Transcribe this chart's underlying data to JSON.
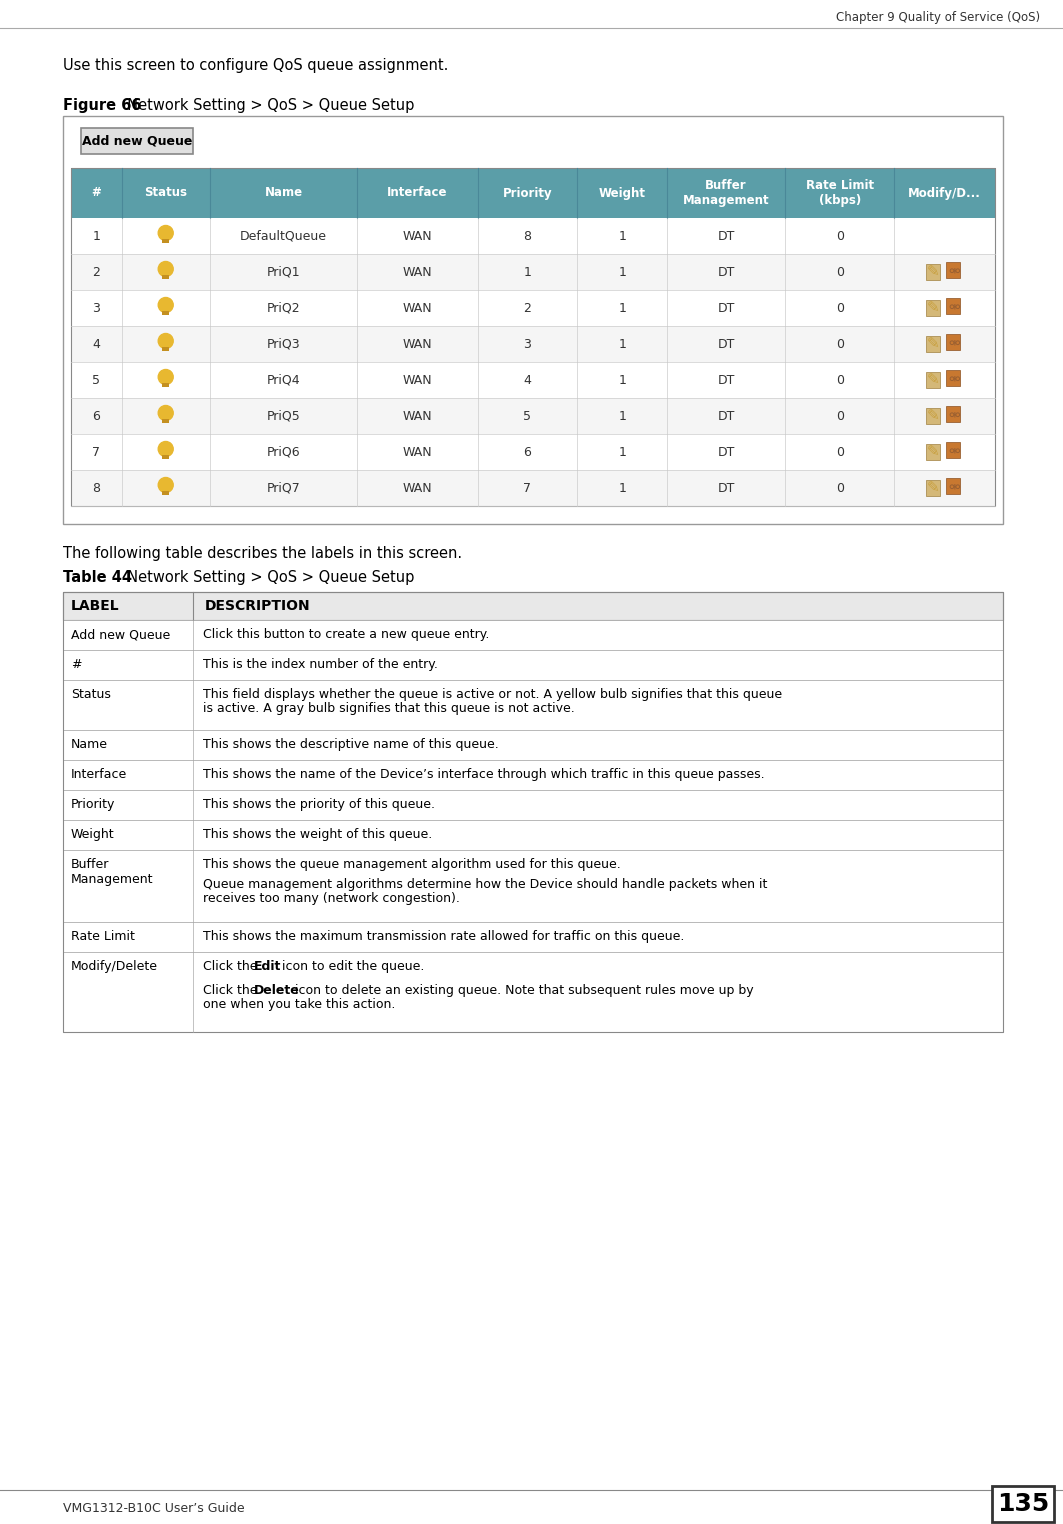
{
  "page_header": "Chapter 9 Quality of Service (QoS)",
  "page_footer_left": "VMG1312-B10C User’s Guide",
  "page_number": "135",
  "intro_text": "Use this screen to configure QoS queue assignment.",
  "figure_label": "Figure 66",
  "figure_title": "  Network Setting > QoS > Queue Setup",
  "table_label": "Table 44",
  "table_title": "  Network Setting > QoS > Queue Setup",
  "following_text": "The following table describes the labels in this screen.",
  "queue_table_headers": [
    "#",
    "Status",
    "Name",
    "Interface",
    "Priority",
    "Weight",
    "Buffer\nManagement",
    "Rate Limit\n(kbps)",
    "Modify/D..."
  ],
  "queue_rows": [
    [
      "1",
      "bulb",
      "DefaultQueue",
      "WAN",
      "8",
      "1",
      "DT",
      "0",
      ""
    ],
    [
      "2",
      "bulb",
      "PriQ1",
      "WAN",
      "1",
      "1",
      "DT",
      "0",
      "edit_del"
    ],
    [
      "3",
      "bulb",
      "PriQ2",
      "WAN",
      "2",
      "1",
      "DT",
      "0",
      "edit_del"
    ],
    [
      "4",
      "bulb",
      "PriQ3",
      "WAN",
      "3",
      "1",
      "DT",
      "0",
      "edit_del"
    ],
    [
      "5",
      "bulb",
      "PriQ4",
      "WAN",
      "4",
      "1",
      "DT",
      "0",
      "edit_del"
    ],
    [
      "6",
      "bulb",
      "PriQ5",
      "WAN",
      "5",
      "1",
      "DT",
      "0",
      "edit_del"
    ],
    [
      "7",
      "bulb",
      "PriQ6",
      "WAN",
      "6",
      "1",
      "DT",
      "0",
      "edit_del"
    ],
    [
      "8",
      "bulb",
      "PriQ7",
      "WAN",
      "7",
      "1",
      "DT",
      "0",
      "edit_del"
    ]
  ],
  "desc_rows": [
    [
      "Add new Queue",
      "Click this button to create a new queue entry.",
      30
    ],
    [
      "#",
      "This is the index number of the entry.",
      30
    ],
    [
      "Status",
      "This field displays whether the queue is active or not. A yellow bulb signifies that this queue\nis active. A gray bulb signifies that this queue is not active.",
      50
    ],
    [
      "Name",
      "This shows the descriptive name of this queue.",
      30
    ],
    [
      "Interface",
      "This shows the name of the Device’s interface through which traffic in this queue passes.",
      30
    ],
    [
      "Priority",
      "This shows the priority of this queue.",
      30
    ],
    [
      "Weight",
      "This shows the weight of this queue.",
      30
    ],
    [
      "Buffer\nManagement",
      "TWOPARA:This shows the queue management algorithm used for this queue.|Queue management algorithms determine how the Device should handle packets when it\nreceives too many (network congestion).",
      72
    ],
    [
      "Rate Limit",
      "This shows the maximum transmission rate allowed for traffic on this queue.",
      30
    ],
    [
      "Modify/Delete",
      "TWOPARA_BOLD1:Click the |Edit| icon to edit the queue.|Click the |Delete| icon to delete an existing queue. Note that subsequent rules move up by\none when you take this action.",
      80
    ]
  ],
  "header_bg": "#5b9ea8",
  "header_text_color": "#ffffff",
  "border_color": "#bbbbbb",
  "desc_header_bg": "#e8e8e8",
  "desc_header_text": "#000000",
  "page_bg": "#ffffff"
}
